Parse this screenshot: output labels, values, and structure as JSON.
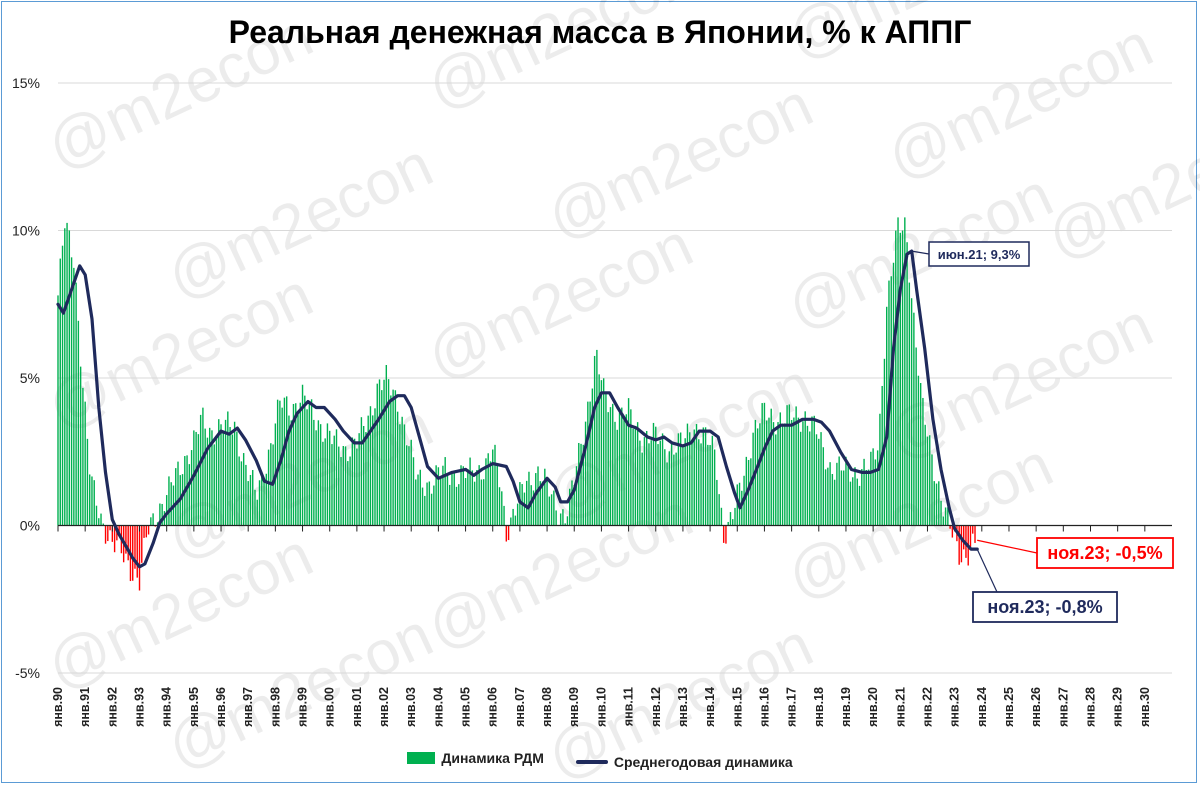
{
  "chart_data": {
    "type": "bar+line",
    "title": "Реальная денежная масса в Японии, % к АППГ",
    "watermark": "@m2econ",
    "ylim": [
      -5,
      15
    ],
    "y_ticks": [
      "15%",
      "10%",
      "5%",
      "0%",
      "-5%"
    ],
    "y_tick_values": [
      15,
      10,
      5,
      0,
      -5
    ],
    "x_start": "янв.90",
    "x_end": "дек.30",
    "x_ticks": [
      "янв.90",
      "янв.91",
      "янв.92",
      "янв.93",
      "янв.94",
      "янв.95",
      "янв.96",
      "янв.97",
      "янв.98",
      "янв.99",
      "янв.00",
      "янв.01",
      "янв.02",
      "янв.03",
      "янв.04",
      "янв.05",
      "янв.06",
      "янв.07",
      "янв.08",
      "янв.09",
      "янв.10",
      "янв.11",
      "янв.12",
      "янв.13",
      "янв.14",
      "янв.15",
      "янв.16",
      "янв.17",
      "янв.18",
      "янв.19",
      "янв.20",
      "янв.21",
      "янв.22",
      "янв.23",
      "янв.24",
      "янв.25",
      "янв.26",
      "янв.27",
      "янв.28",
      "янв.29",
      "янв.30"
    ],
    "colors": {
      "positive": "#00b050",
      "negative": "#ff0000",
      "line": "#1f2a5c"
    },
    "series": [
      {
        "name": "Динамика РДМ",
        "kind": "bar",
        "monthly_anchors": [
          [
            1990.0,
            7.8
          ],
          [
            1990.25,
            10.2
          ],
          [
            1990.6,
            9.0
          ],
          [
            1990.9,
            5.0
          ],
          [
            1991.2,
            1.5
          ],
          [
            1991.6,
            0.2
          ],
          [
            1992.0,
            -0.6
          ],
          [
            1992.4,
            -1.0
          ],
          [
            1992.8,
            -1.6
          ],
          [
            1993.0,
            -1.9
          ],
          [
            1993.3,
            -0.2
          ],
          [
            1993.6,
            0.4
          ],
          [
            1994.0,
            1.0
          ],
          [
            1994.5,
            2.0
          ],
          [
            1995.0,
            2.8
          ],
          [
            1995.3,
            3.6
          ],
          [
            1995.6,
            3.2
          ],
          [
            1996.0,
            3.3
          ],
          [
            1996.5,
            3.4
          ],
          [
            1996.9,
            2.0
          ],
          [
            1997.3,
            1.0
          ],
          [
            1997.8,
            2.6
          ],
          [
            1998.2,
            4.2
          ],
          [
            1998.6,
            4.0
          ],
          [
            1999.0,
            4.3
          ],
          [
            1999.4,
            3.8
          ],
          [
            1999.8,
            3.2
          ],
          [
            2000.2,
            2.8
          ],
          [
            2000.6,
            2.6
          ],
          [
            2001.0,
            2.8
          ],
          [
            2001.4,
            3.6
          ],
          [
            2001.8,
            4.8
          ],
          [
            2002.1,
            4.9
          ],
          [
            2002.5,
            4.2
          ],
          [
            2002.9,
            2.8
          ],
          [
            2003.2,
            1.6
          ],
          [
            2003.7,
            1.4
          ],
          [
            2004.2,
            1.9
          ],
          [
            2004.7,
            1.7
          ],
          [
            2005.2,
            1.8
          ],
          [
            2005.7,
            2.0
          ],
          [
            2006.0,
            2.5
          ],
          [
            2006.3,
            1.4
          ],
          [
            2006.5,
            -0.2
          ],
          [
            2006.8,
            0.5
          ],
          [
            2007.2,
            1.4
          ],
          [
            2007.7,
            1.9
          ],
          [
            2008.0,
            1.3
          ],
          [
            2008.4,
            0.5
          ],
          [
            2008.7,
            0.4
          ],
          [
            2009.0,
            1.5
          ],
          [
            2009.4,
            3.5
          ],
          [
            2009.8,
            5.8
          ],
          [
            2010.1,
            4.4
          ],
          [
            2010.6,
            3.7
          ],
          [
            2011.0,
            3.8
          ],
          [
            2011.5,
            3.0
          ],
          [
            2012.0,
            3.0
          ],
          [
            2012.5,
            2.6
          ],
          [
            2013.0,
            2.8
          ],
          [
            2013.4,
            3.4
          ],
          [
            2013.8,
            3.0
          ],
          [
            2014.2,
            2.4
          ],
          [
            2014.5,
            -0.3
          ],
          [
            2014.8,
            0.2
          ],
          [
            2015.2,
            1.6
          ],
          [
            2015.6,
            3.2
          ],
          [
            2016.0,
            3.8
          ],
          [
            2016.5,
            3.6
          ],
          [
            2017.0,
            3.7
          ],
          [
            2017.5,
            3.7
          ],
          [
            2017.9,
            3.2
          ],
          [
            2018.4,
            2.0
          ],
          [
            2018.9,
            1.9
          ],
          [
            2019.4,
            1.8
          ],
          [
            2019.9,
            2.0
          ],
          [
            2020.2,
            2.8
          ],
          [
            2020.5,
            7.5
          ],
          [
            2020.9,
            10.0
          ],
          [
            2021.2,
            10.2
          ],
          [
            2021.5,
            7.0
          ],
          [
            2021.8,
            4.0
          ],
          [
            2022.2,
            2.2
          ],
          [
            2022.6,
            0.6
          ],
          [
            2022.9,
            -0.3
          ],
          [
            2023.2,
            -1.0
          ],
          [
            2023.5,
            -0.9
          ],
          [
            2023.83,
            -0.5
          ]
        ]
      },
      {
        "name": "Среднегодовая динамика",
        "kind": "line",
        "anchors": [
          [
            1990.0,
            7.5
          ],
          [
            1990.2,
            7.2
          ],
          [
            1990.5,
            8.0
          ],
          [
            1990.8,
            8.8
          ],
          [
            1991.0,
            8.5
          ],
          [
            1991.25,
            7.0
          ],
          [
            1991.5,
            4.0
          ],
          [
            1991.75,
            1.8
          ],
          [
            1992.0,
            0.2
          ],
          [
            1992.25,
            -0.3
          ],
          [
            1992.5,
            -0.7
          ],
          [
            1992.75,
            -1.1
          ],
          [
            1993.0,
            -1.4
          ],
          [
            1993.2,
            -1.3
          ],
          [
            1993.5,
            -0.6
          ],
          [
            1993.75,
            0.1
          ],
          [
            1994.0,
            0.4
          ],
          [
            1994.5,
            0.9
          ],
          [
            1995.0,
            1.7
          ],
          [
            1995.5,
            2.6
          ],
          [
            1996.0,
            3.2
          ],
          [
            1996.3,
            3.1
          ],
          [
            1996.6,
            3.3
          ],
          [
            1996.9,
            2.9
          ],
          [
            1997.3,
            2.2
          ],
          [
            1997.6,
            1.5
          ],
          [
            1997.9,
            1.4
          ],
          [
            1998.2,
            2.2
          ],
          [
            1998.5,
            3.2
          ],
          [
            1998.8,
            3.8
          ],
          [
            1999.2,
            4.2
          ],
          [
            1999.5,
            4.0
          ],
          [
            1999.8,
            4.0
          ],
          [
            2000.2,
            3.6
          ],
          [
            2000.5,
            3.2
          ],
          [
            2000.9,
            2.8
          ],
          [
            2001.2,
            2.8
          ],
          [
            2001.5,
            3.2
          ],
          [
            2001.8,
            3.6
          ],
          [
            2002.2,
            4.2
          ],
          [
            2002.5,
            4.4
          ],
          [
            2002.75,
            4.4
          ],
          [
            2003.0,
            4.0
          ],
          [
            2003.3,
            3.0
          ],
          [
            2003.6,
            2.0
          ],
          [
            2004.0,
            1.6
          ],
          [
            2004.5,
            1.8
          ],
          [
            2005.0,
            1.9
          ],
          [
            2005.3,
            1.7
          ],
          [
            2005.6,
            1.9
          ],
          [
            2006.0,
            2.1
          ],
          [
            2006.5,
            2.0
          ],
          [
            2006.75,
            1.5
          ],
          [
            2007.0,
            0.8
          ],
          [
            2007.3,
            0.6
          ],
          [
            2007.6,
            1.1
          ],
          [
            2008.0,
            1.6
          ],
          [
            2008.3,
            1.3
          ],
          [
            2008.5,
            0.8
          ],
          [
            2008.75,
            0.8
          ],
          [
            2009.0,
            1.2
          ],
          [
            2009.4,
            2.6
          ],
          [
            2009.75,
            4.0
          ],
          [
            2010.0,
            4.5
          ],
          [
            2010.3,
            4.5
          ],
          [
            2010.6,
            4.0
          ],
          [
            2011.0,
            3.4
          ],
          [
            2011.3,
            3.3
          ],
          [
            2011.7,
            3.0
          ],
          [
            2012.0,
            2.9
          ],
          [
            2012.3,
            3.0
          ],
          [
            2012.6,
            2.8
          ],
          [
            2013.0,
            2.7
          ],
          [
            2013.3,
            2.8
          ],
          [
            2013.6,
            3.2
          ],
          [
            2014.0,
            3.2
          ],
          [
            2014.3,
            3.0
          ],
          [
            2014.6,
            2.0
          ],
          [
            2014.9,
            1.1
          ],
          [
            2015.1,
            0.6
          ],
          [
            2015.4,
            1.2
          ],
          [
            2015.75,
            2.0
          ],
          [
            2016.0,
            2.6
          ],
          [
            2016.3,
            3.2
          ],
          [
            2016.6,
            3.4
          ],
          [
            2017.0,
            3.4
          ],
          [
            2017.4,
            3.6
          ],
          [
            2017.8,
            3.6
          ],
          [
            2018.1,
            3.5
          ],
          [
            2018.4,
            3.2
          ],
          [
            2018.8,
            2.5
          ],
          [
            2019.2,
            1.9
          ],
          [
            2019.6,
            1.8
          ],
          [
            2019.9,
            1.8
          ],
          [
            2020.2,
            1.9
          ],
          [
            2020.5,
            3.0
          ],
          [
            2020.75,
            6.0
          ],
          [
            2021.0,
            8.0
          ],
          [
            2021.25,
            9.2
          ],
          [
            2021.42,
            9.3
          ],
          [
            2021.6,
            8.0
          ],
          [
            2021.9,
            6.0
          ],
          [
            2022.2,
            3.6
          ],
          [
            2022.5,
            1.9
          ],
          [
            2022.8,
            0.6
          ],
          [
            2023.0,
            -0.1
          ],
          [
            2023.3,
            -0.5
          ],
          [
            2023.6,
            -0.8
          ],
          [
            2023.83,
            -0.8
          ]
        ]
      }
    ],
    "annotations": [
      {
        "text": "июн.21; 9,3%",
        "x": 2021.42,
        "y": 9.3,
        "color": "#1f2a5c"
      },
      {
        "text": "ноя.23; -0,5%",
        "x": 2023.83,
        "y": -0.5,
        "color": "#ff0000"
      },
      {
        "text": "ноя.23; -0,8%",
        "x": 2023.83,
        "y": -0.8,
        "color": "#1f2a5c"
      }
    ],
    "legend": {
      "bar_label": "Динамика РДМ",
      "line_label": "Среднегодовая динамика",
      "position": "bottom"
    }
  }
}
